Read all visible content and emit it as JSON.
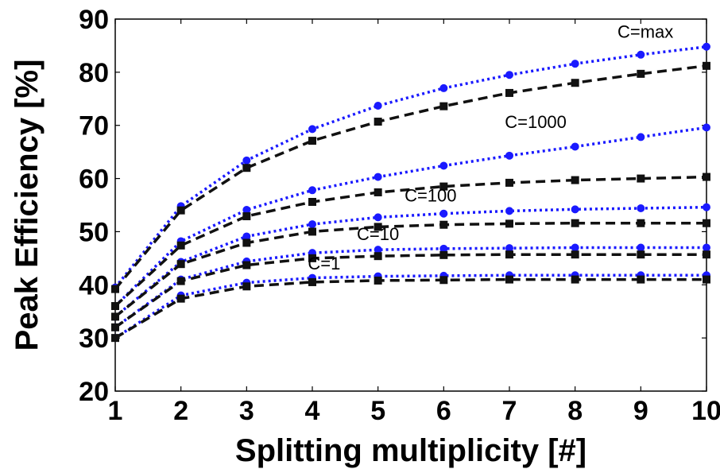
{
  "chart_data": {
    "type": "line",
    "xlabel": "Splitting multiplicity [#]",
    "ylabel": "Peak Efficiency [%]",
    "xlim": [
      1,
      10
    ],
    "ylim": [
      20,
      90
    ],
    "xticks": [
      1,
      2,
      3,
      4,
      5,
      6,
      7,
      8,
      9,
      10
    ],
    "yticks": [
      20,
      30,
      40,
      50,
      60,
      70,
      80,
      90
    ],
    "grid": false,
    "x": [
      1,
      2,
      3,
      4,
      5,
      6,
      7,
      8,
      9,
      10
    ],
    "series": [
      {
        "name": "C=max",
        "style": "dotted",
        "marker": "circle",
        "color": "#1a1aff",
        "values": [
          39.5,
          54.8,
          63.4,
          69.3,
          73.7,
          77.0,
          79.5,
          81.6,
          83.3,
          84.8
        ]
      },
      {
        "name": "",
        "style": "dashed",
        "marker": "square",
        "color": "#111111",
        "values": [
          39.2,
          54.0,
          62.0,
          67.1,
          70.7,
          73.6,
          76.1,
          78.0,
          79.7,
          81.2
        ]
      },
      {
        "name": "C=1000",
        "style": "dotted",
        "marker": "circle",
        "color": "#1a1aff",
        "values": [
          36.0,
          48.2,
          54.1,
          57.8,
          60.3,
          62.4,
          64.3,
          66.0,
          67.8,
          69.6
        ]
      },
      {
        "name": "",
        "style": "dashed",
        "marker": "square",
        "color": "#111111",
        "values": [
          36.0,
          47.4,
          52.9,
          55.6,
          57.4,
          58.5,
          59.2,
          59.7,
          60.0,
          60.3
        ]
      },
      {
        "name": "C=100",
        "style": "dotted",
        "marker": "circle",
        "color": "#1a1aff",
        "values": [
          34.0,
          44.3,
          49.1,
          51.4,
          52.7,
          53.4,
          53.9,
          54.2,
          54.4,
          54.6
        ]
      },
      {
        "name": "",
        "style": "dashed",
        "marker": "square",
        "color": "#111111",
        "values": [
          34.0,
          43.9,
          47.9,
          50.0,
          50.9,
          51.3,
          51.5,
          51.6,
          51.6,
          51.6
        ]
      },
      {
        "name": "C=10",
        "style": "dotted",
        "marker": "circle",
        "color": "#1a1aff",
        "values": [
          32.0,
          41.0,
          44.4,
          46.0,
          46.6,
          46.8,
          46.9,
          47.0,
          47.0,
          47.0
        ]
      },
      {
        "name": "",
        "style": "dashed",
        "marker": "square",
        "color": "#111111",
        "values": [
          32.0,
          40.7,
          43.7,
          45.0,
          45.4,
          45.6,
          45.7,
          45.7,
          45.7,
          45.7
        ]
      },
      {
        "name": "C=1",
        "style": "dotted",
        "marker": "circle",
        "color": "#1a1aff",
        "values": [
          30.0,
          38.0,
          40.4,
          41.3,
          41.6,
          41.7,
          41.8,
          41.8,
          41.8,
          41.8
        ]
      },
      {
        "name": "",
        "style": "dashed",
        "marker": "square",
        "color": "#111111",
        "values": [
          30.0,
          37.4,
          39.7,
          40.5,
          40.8,
          40.9,
          41.0,
          41.0,
          41.0,
          41.0
        ]
      }
    ],
    "annotations": [
      {
        "text": "C=max",
        "x": 9.07,
        "y": 86.5
      },
      {
        "text": "C=1000",
        "x": 7.4,
        "y": 69.5
      },
      {
        "text": "C=100",
        "x": 5.8,
        "y": 55.7
      },
      {
        "text": "C=10",
        "x": 5.0,
        "y": 48.4
      },
      {
        "text": "C=1",
        "x": 4.18,
        "y": 42.9
      }
    ]
  }
}
